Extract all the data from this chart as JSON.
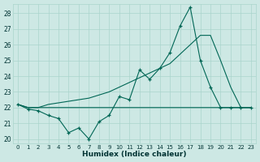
{
  "xlabel": "Humidex (Indice chaleur)",
  "background_color": "#cde8e4",
  "grid_color": "#aad4cc",
  "line_color": "#006655",
  "xlim": [
    -0.5,
    23.5
  ],
  "ylim": [
    19.7,
    28.6
  ],
  "yticks": [
    20,
    21,
    22,
    23,
    24,
    25,
    26,
    27,
    28
  ],
  "xticks": [
    0,
    1,
    2,
    3,
    4,
    5,
    6,
    7,
    8,
    9,
    10,
    11,
    12,
    13,
    14,
    15,
    16,
    17,
    18,
    19,
    20,
    21,
    22,
    23
  ],
  "series_main": [
    22.2,
    21.9,
    21.8,
    21.5,
    21.3,
    20.4,
    20.7,
    20.0,
    21.1,
    21.5,
    22.7,
    22.5,
    24.4,
    23.8,
    24.5,
    25.5,
    27.2,
    28.4,
    25.0,
    23.3,
    22.0,
    22.0,
    22.0,
    22.0
  ],
  "series_flat": [
    22.2,
    22.0,
    22.0,
    22.0,
    22.0,
    22.0,
    22.0,
    22.0,
    22.0,
    22.0,
    22.0,
    22.0,
    22.0,
    22.0,
    22.0,
    22.0,
    22.0,
    22.0,
    22.0,
    22.0,
    22.0,
    22.0,
    22.0,
    22.0
  ],
  "series_trend": [
    22.2,
    22.0,
    22.0,
    22.2,
    22.3,
    22.4,
    22.5,
    22.6,
    22.8,
    23.0,
    23.3,
    23.6,
    23.9,
    24.2,
    24.5,
    24.8,
    25.4,
    26.0,
    26.6,
    26.6,
    25.0,
    23.3,
    22.0,
    22.0
  ]
}
